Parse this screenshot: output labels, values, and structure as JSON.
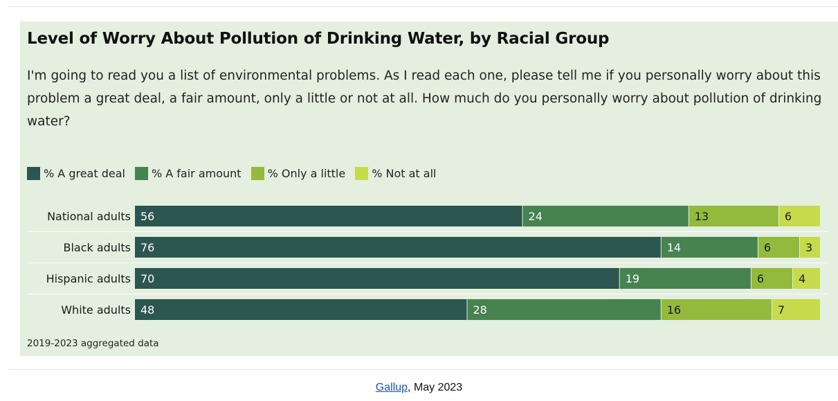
{
  "title": "Level of Worry About Pollution of Drinking Water, by Racial Group",
  "question": "I'm going to read you a list of environmental problems. As I read each one, please tell me if you personally worry about this problem a great deal, a fair amount, only a little or not at all. How much do you personally worry about pollution of drinking water?",
  "note": "2019-2023 aggregated data",
  "source": {
    "link_text": "Gallup",
    "suffix": ", May 2023"
  },
  "colors": {
    "great_deal": "#2c5650",
    "fair_amount": "#468350",
    "only_little": "#93ba3c",
    "not_at_all": "#c5db4b"
  },
  "chart_data": {
    "type": "bar",
    "orientation": "horizontal",
    "stacked": true,
    "xlim": [
      0,
      100
    ],
    "categories": [
      "National adults",
      "Black adults",
      "Hispanic adults",
      "White adults"
    ],
    "series": [
      {
        "name": "% A great deal",
        "color_key": "great_deal",
        "label_color": "#ffffff",
        "values": [
          56,
          76,
          70,
          48
        ]
      },
      {
        "name": "% A fair amount",
        "color_key": "fair_amount",
        "label_color": "#ffffff",
        "values": [
          24,
          14,
          19,
          28
        ]
      },
      {
        "name": "% Only a little",
        "color_key": "only_little",
        "label_color": "#1a1a1a",
        "values": [
          13,
          6,
          6,
          16
        ]
      },
      {
        "name": "% Not at all",
        "color_key": "not_at_all",
        "label_color": "#1a1a1a",
        "values": [
          6,
          3,
          4,
          7
        ]
      }
    ],
    "legend": "top-left",
    "grid": false
  }
}
